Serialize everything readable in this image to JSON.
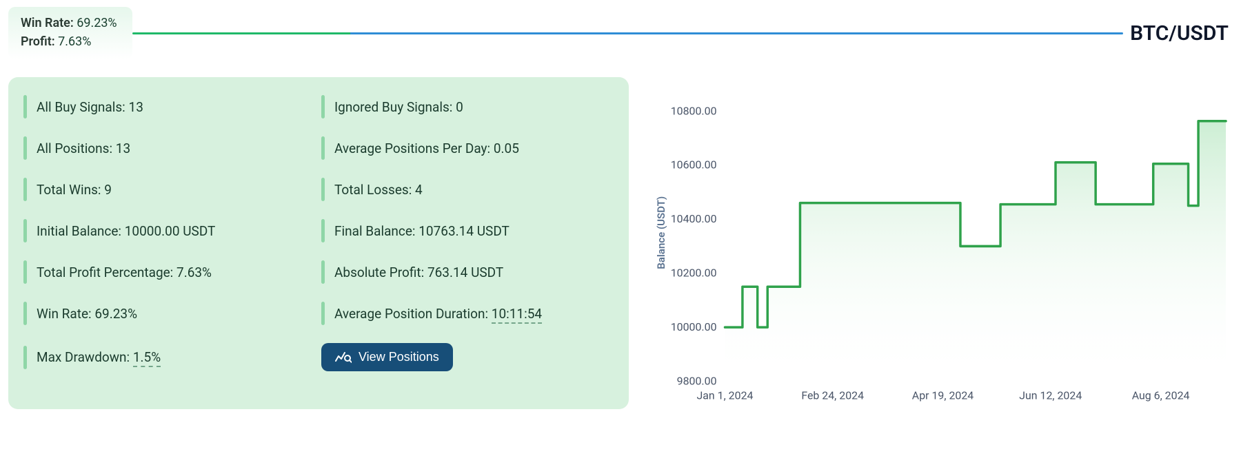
{
  "header": {
    "win_rate_label": "Win Rate:",
    "win_rate_value": "69.23%",
    "profit_label": "Profit:",
    "profit_value": "7.63%",
    "pair": "BTC/USDT",
    "divider_colors": {
      "left": "#1fb968",
      "right": "#2f8dd6",
      "split_at": 0.22
    }
  },
  "stats": {
    "all_buy_signals": {
      "label": "All Buy Signals:",
      "value": "13"
    },
    "ignored_buy_signals": {
      "label": "Ignored Buy Signals:",
      "value": "0"
    },
    "all_positions": {
      "label": "All Positions:",
      "value": "13"
    },
    "avg_positions_per_day": {
      "label": "Average Positions Per Day:",
      "value": "0.05"
    },
    "total_wins": {
      "label": "Total Wins:",
      "value": "9"
    },
    "total_losses": {
      "label": "Total Losses:",
      "value": "4"
    },
    "initial_balance": {
      "label": "Initial Balance:",
      "value": "10000.00 USDT"
    },
    "final_balance": {
      "label": "Final Balance:",
      "value": "10763.14 USDT"
    },
    "total_profit_pct": {
      "label": "Total Profit Percentage:",
      "value": "7.63%"
    },
    "absolute_profit": {
      "label": "Absolute Profit:",
      "value": "763.14 USDT"
    },
    "win_rate": {
      "label": "Win Rate:",
      "value": "69.23%"
    },
    "avg_pos_duration": {
      "label": "Average Position Duration:",
      "value": "10:11:54",
      "dashed": true
    },
    "max_drawdown": {
      "label": "Max Drawdown:",
      "value": "1.5%",
      "dashed": true
    },
    "view_positions_btn": {
      "label": "View Positions"
    }
  },
  "chart": {
    "type": "area-step",
    "y_axis_label": "Balance (USDT)",
    "y_ticks": [
      "9800.00",
      "10000.00",
      "10200.00",
      "10400.00",
      "10600.00",
      "10800.00"
    ],
    "y_domain": [
      9800,
      10900
    ],
    "x_ticks": [
      "Jan 1, 2024",
      "Feb 24, 2024",
      "Apr 19, 2024",
      "Jun 12, 2024",
      "Aug 6, 2024"
    ],
    "x_tick_positions": [
      0.0,
      0.215,
      0.435,
      0.65,
      0.87
    ],
    "line_color": "#2fa24b",
    "line_width": 3.5,
    "fill_top": "#c7eccf",
    "fill_bottom": "#ffffff",
    "background": "#ffffff",
    "points": [
      {
        "x": 0.0,
        "y": 10000
      },
      {
        "x": 0.035,
        "y": 10000
      },
      {
        "x": 0.035,
        "y": 10150
      },
      {
        "x": 0.065,
        "y": 10150
      },
      {
        "x": 0.065,
        "y": 10000
      },
      {
        "x": 0.085,
        "y": 10000
      },
      {
        "x": 0.085,
        "y": 10150
      },
      {
        "x": 0.15,
        "y": 10150
      },
      {
        "x": 0.15,
        "y": 10460
      },
      {
        "x": 0.47,
        "y": 10460
      },
      {
        "x": 0.47,
        "y": 10300
      },
      {
        "x": 0.55,
        "y": 10300
      },
      {
        "x": 0.55,
        "y": 10455
      },
      {
        "x": 0.66,
        "y": 10455
      },
      {
        "x": 0.66,
        "y": 10610
      },
      {
        "x": 0.74,
        "y": 10610
      },
      {
        "x": 0.74,
        "y": 10455
      },
      {
        "x": 0.855,
        "y": 10455
      },
      {
        "x": 0.855,
        "y": 10605
      },
      {
        "x": 0.925,
        "y": 10605
      },
      {
        "x": 0.925,
        "y": 10450
      },
      {
        "x": 0.945,
        "y": 10450
      },
      {
        "x": 0.945,
        "y": 10763
      },
      {
        "x": 1.0,
        "y": 10763
      }
    ]
  },
  "colors": {
    "card_bg": "#d7f1de",
    "accent_bar": "#8fd6a7",
    "btn_bg": "#174e78",
    "text": "#1f2937"
  }
}
